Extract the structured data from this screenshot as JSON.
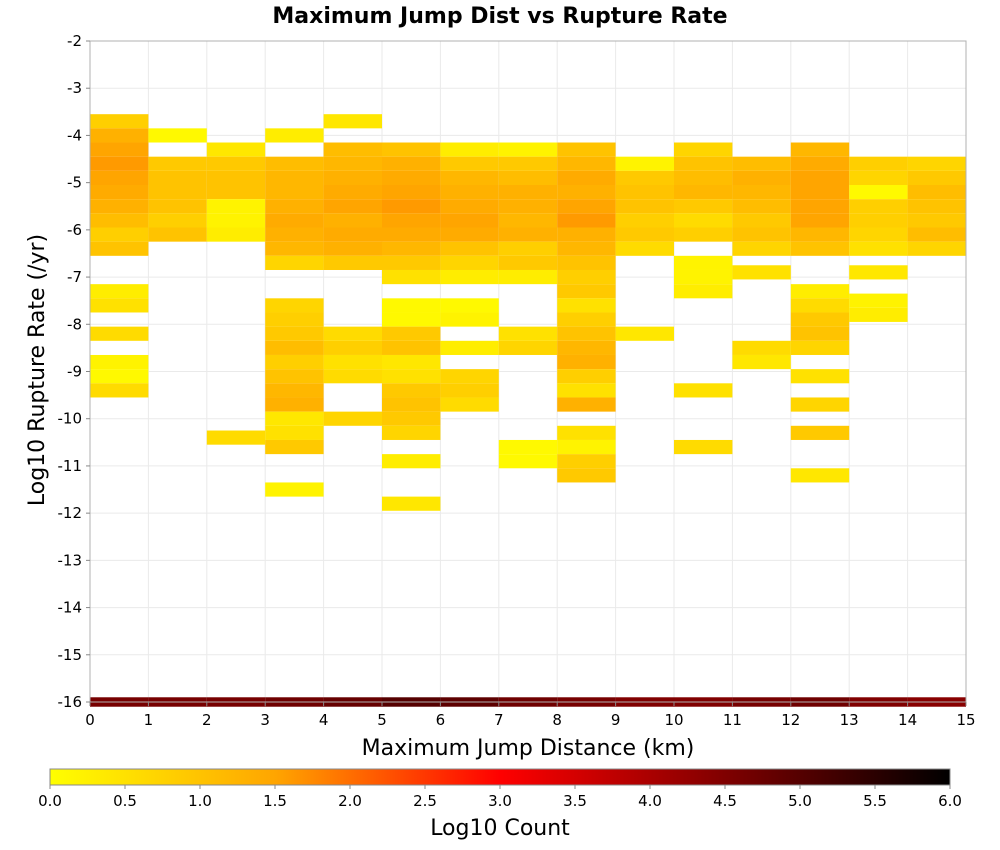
{
  "chart_data": {
    "type": "heatmap",
    "title": "Maximum Jump Dist vs Rupture Rate",
    "xlabel": "Maximum Jump Distance (km)",
    "ylabel": "Log10 Rupture Rate (/yr)",
    "xlim": [
      0,
      15
    ],
    "ylim": [
      -16,
      -2
    ],
    "x_ticks": [
      "0",
      "1",
      "2",
      "3",
      "4",
      "5",
      "6",
      "7",
      "8",
      "9",
      "10",
      "11",
      "12",
      "13",
      "14",
      "15"
    ],
    "y_ticks": [
      "-2",
      "-3",
      "-4",
      "-5",
      "-6",
      "-7",
      "-8",
      "-9",
      "-10",
      "-11",
      "-12",
      "-13",
      "-14",
      "-15",
      "-16"
    ],
    "grid": true,
    "x_bin_width": 1,
    "y_bin_width": 0.3,
    "colorbar": {
      "label": "Log10 Count",
      "range": [
        0,
        6
      ],
      "ticks": [
        "0.0",
        "0.5",
        "1.0",
        "1.5",
        "2.0",
        "2.5",
        "3.0",
        "3.5",
        "4.0",
        "4.5",
        "5.0",
        "5.5",
        "6.0"
      ],
      "colors": [
        "#ffff00",
        "#ffa500",
        "#ff0000",
        "#000000"
      ]
    },
    "columns": [
      {
        "x": [
          0,
          1
        ],
        "cells": [
          [
            -3.7,
            0.8
          ],
          [
            -4.0,
            1.3
          ],
          [
            -4.3,
            1.5
          ],
          [
            -4.6,
            1.6
          ],
          [
            -4.9,
            1.5
          ],
          [
            -5.2,
            1.4
          ],
          [
            -5.5,
            1.3
          ],
          [
            -5.8,
            1.1
          ],
          [
            -6.1,
            0.8
          ],
          [
            -6.4,
            1.0
          ],
          [
            -7.3,
            0.3
          ],
          [
            -7.6,
            0.5
          ],
          [
            -8.2,
            0.6
          ],
          [
            -8.8,
            0.2
          ],
          [
            -9.1,
            0.1
          ],
          [
            -9.4,
            0.6
          ]
        ]
      },
      {
        "x": [
          1,
          2
        ],
        "cells": [
          [
            -4.0,
            0.1
          ],
          [
            -4.6,
            0.9
          ],
          [
            -4.9,
            1.0
          ],
          [
            -5.2,
            1.0
          ],
          [
            -5.5,
            1.0
          ],
          [
            -5.8,
            0.8
          ],
          [
            -6.1,
            1.0
          ]
        ]
      },
      {
        "x": [
          2,
          3
        ],
        "cells": [
          [
            -4.3,
            0.4
          ],
          [
            -4.6,
            0.9
          ],
          [
            -4.9,
            1.0
          ],
          [
            -5.2,
            1.0
          ],
          [
            -5.5,
            0.2
          ],
          [
            -5.8,
            0.2
          ],
          [
            -6.1,
            0.3
          ],
          [
            -10.4,
            0.6
          ]
        ]
      },
      {
        "x": [
          3,
          4
        ],
        "cells": [
          [
            -4.0,
            0.3
          ],
          [
            -4.6,
            1.1
          ],
          [
            -4.9,
            1.2
          ],
          [
            -5.2,
            1.2
          ],
          [
            -5.5,
            1.3
          ],
          [
            -5.8,
            1.4
          ],
          [
            -6.1,
            1.3
          ],
          [
            -6.4,
            1.2
          ],
          [
            -6.7,
            0.7
          ],
          [
            -7.6,
            0.7
          ],
          [
            -7.9,
            0.8
          ],
          [
            -8.2,
            0.9
          ],
          [
            -8.5,
            1.1
          ],
          [
            -8.8,
            0.8
          ],
          [
            -9.1,
            1.0
          ],
          [
            -9.4,
            1.2
          ],
          [
            -9.7,
            1.3
          ],
          [
            -10.0,
            0.4
          ],
          [
            -10.3,
            0.5
          ],
          [
            -10.6,
            0.9
          ],
          [
            -11.5,
            0.2
          ]
        ]
      },
      {
        "x": [
          4,
          5
        ],
        "cells": [
          [
            -3.7,
            0.4
          ],
          [
            -4.3,
            1.1
          ],
          [
            -4.6,
            1.2
          ],
          [
            -4.9,
            1.3
          ],
          [
            -5.2,
            1.4
          ],
          [
            -5.5,
            1.5
          ],
          [
            -5.8,
            1.3
          ],
          [
            -6.1,
            1.4
          ],
          [
            -6.4,
            1.3
          ],
          [
            -6.7,
            0.9
          ],
          [
            -8.2,
            0.6
          ],
          [
            -8.5,
            0.8
          ],
          [
            -8.8,
            0.5
          ],
          [
            -9.1,
            0.6
          ],
          [
            -10.0,
            0.7
          ]
        ]
      },
      {
        "x": [
          5,
          6
        ],
        "cells": [
          [
            -4.3,
            1.0
          ],
          [
            -4.6,
            1.3
          ],
          [
            -4.9,
            1.4
          ],
          [
            -5.2,
            1.5
          ],
          [
            -5.5,
            1.6
          ],
          [
            -5.8,
            1.5
          ],
          [
            -6.1,
            1.4
          ],
          [
            -6.4,
            1.2
          ],
          [
            -6.7,
            0.9
          ],
          [
            -7.0,
            0.5
          ],
          [
            -7.6,
            0.1
          ],
          [
            -7.9,
            0.1
          ],
          [
            -8.2,
            0.9
          ],
          [
            -8.5,
            1.0
          ],
          [
            -8.8,
            0.4
          ],
          [
            -9.1,
            0.5
          ],
          [
            -9.4,
            0.9
          ],
          [
            -9.7,
            1.0
          ],
          [
            -10.0,
            0.9
          ],
          [
            -10.3,
            0.7
          ],
          [
            -10.9,
            0.3
          ],
          [
            -11.8,
            0.4
          ]
        ]
      },
      {
        "x": [
          6,
          7
        ],
        "cells": [
          [
            -4.3,
            0.3
          ],
          [
            -4.6,
            0.9
          ],
          [
            -4.9,
            1.2
          ],
          [
            -5.2,
            1.3
          ],
          [
            -5.5,
            1.4
          ],
          [
            -5.8,
            1.5
          ],
          [
            -6.1,
            1.4
          ],
          [
            -6.4,
            1.0
          ],
          [
            -6.7,
            0.7
          ],
          [
            -7.0,
            0.3
          ],
          [
            -7.6,
            0.1
          ],
          [
            -7.9,
            0.2
          ],
          [
            -8.5,
            0.3
          ],
          [
            -9.1,
            0.7
          ],
          [
            -9.4,
            0.8
          ],
          [
            -9.7,
            0.6
          ]
        ]
      },
      {
        "x": [
          7,
          8
        ],
        "cells": [
          [
            -4.3,
            0.2
          ],
          [
            -4.6,
            0.9
          ],
          [
            -4.9,
            1.1
          ],
          [
            -5.2,
            1.3
          ],
          [
            -5.5,
            1.3
          ],
          [
            -5.8,
            1.2
          ],
          [
            -6.1,
            1.3
          ],
          [
            -6.4,
            0.8
          ],
          [
            -6.7,
            0.9
          ],
          [
            -7.0,
            0.3
          ],
          [
            -8.2,
            0.5
          ],
          [
            -8.5,
            0.7
          ],
          [
            -10.6,
            0.1
          ],
          [
            -10.9,
            0.1
          ]
        ]
      },
      {
        "x": [
          8,
          9
        ],
        "cells": [
          [
            -4.3,
            1.0
          ],
          [
            -4.6,
            1.2
          ],
          [
            -4.9,
            1.4
          ],
          [
            -5.2,
            1.3
          ],
          [
            -5.5,
            1.5
          ],
          [
            -5.8,
            1.6
          ],
          [
            -6.1,
            1.3
          ],
          [
            -6.4,
            1.2
          ],
          [
            -6.7,
            1.0
          ],
          [
            -7.0,
            0.8
          ],
          [
            -7.3,
            0.9
          ],
          [
            -7.6,
            0.5
          ],
          [
            -7.9,
            0.8
          ],
          [
            -8.2,
            1.0
          ],
          [
            -8.5,
            1.2
          ],
          [
            -8.8,
            1.3
          ],
          [
            -9.1,
            0.8
          ],
          [
            -9.4,
            0.5
          ],
          [
            -9.7,
            1.3
          ],
          [
            -10.3,
            0.5
          ],
          [
            -10.6,
            0.2
          ],
          [
            -10.9,
            0.8
          ],
          [
            -11.2,
            0.9
          ]
        ]
      },
      {
        "x": [
          9,
          10
        ],
        "cells": [
          [
            -4.6,
            0.2
          ],
          [
            -4.9,
            0.9
          ],
          [
            -5.2,
            1.0
          ],
          [
            -5.5,
            1.0
          ],
          [
            -5.8,
            0.8
          ],
          [
            -6.1,
            0.9
          ],
          [
            -6.4,
            0.6
          ],
          [
            -8.2,
            0.4
          ]
        ]
      },
      {
        "x": [
          10,
          11
        ],
        "cells": [
          [
            -4.3,
            0.7
          ],
          [
            -4.6,
            1.0
          ],
          [
            -4.9,
            1.1
          ],
          [
            -5.2,
            1.2
          ],
          [
            -5.5,
            0.9
          ],
          [
            -5.8,
            0.6
          ],
          [
            -6.1,
            0.8
          ],
          [
            -6.7,
            0.2
          ],
          [
            -7.0,
            0.2
          ],
          [
            -7.3,
            0.3
          ],
          [
            -9.4,
            0.5
          ],
          [
            -10.6,
            0.6
          ]
        ]
      },
      {
        "x": [
          11,
          12
        ],
        "cells": [
          [
            -4.6,
            1.1
          ],
          [
            -4.9,
            1.3
          ],
          [
            -5.2,
            1.2
          ],
          [
            -5.5,
            1.1
          ],
          [
            -5.8,
            0.9
          ],
          [
            -6.1,
            1.0
          ],
          [
            -6.4,
            0.7
          ],
          [
            -6.9,
            0.5
          ],
          [
            -8.5,
            0.6
          ],
          [
            -8.8,
            0.4
          ]
        ]
      },
      {
        "x": [
          12,
          13
        ],
        "cells": [
          [
            -4.3,
            1.2
          ],
          [
            -4.6,
            1.4
          ],
          [
            -4.9,
            1.5
          ],
          [
            -5.2,
            1.5
          ],
          [
            -5.5,
            1.5
          ],
          [
            -5.8,
            1.5
          ],
          [
            -6.1,
            1.2
          ],
          [
            -6.4,
            1.0
          ],
          [
            -7.3,
            0.3
          ],
          [
            -7.6,
            0.6
          ],
          [
            -7.9,
            0.9
          ],
          [
            -8.2,
            1.0
          ],
          [
            -8.5,
            0.7
          ],
          [
            -9.1,
            0.5
          ],
          [
            -9.7,
            0.7
          ],
          [
            -10.3,
            0.9
          ],
          [
            -11.2,
            0.4
          ]
        ]
      },
      {
        "x": [
          13,
          14
        ],
        "cells": [
          [
            -4.6,
            0.8
          ],
          [
            -4.9,
            0.7
          ],
          [
            -5.2,
            0.1
          ],
          [
            -5.5,
            0.8
          ],
          [
            -5.8,
            0.8
          ],
          [
            -6.1,
            0.7
          ],
          [
            -6.4,
            0.5
          ],
          [
            -6.9,
            0.4
          ],
          [
            -7.5,
            0.2
          ],
          [
            -7.8,
            0.3
          ]
        ]
      },
      {
        "x": [
          14,
          15
        ],
        "cells": [
          [
            -4.6,
            0.7
          ],
          [
            -4.9,
            0.9
          ],
          [
            -5.2,
            1.1
          ],
          [
            -5.5,
            1.0
          ],
          [
            -5.8,
            0.9
          ],
          [
            -6.1,
            1.1
          ],
          [
            -6.4,
            0.7
          ]
        ]
      }
    ],
    "bottom_band": {
      "y": -16,
      "height": 0.2,
      "values": [
        4.6,
        4.6,
        4.6,
        4.7,
        4.8,
        5.0,
        4.9,
        4.7,
        4.6,
        4.5,
        4.5,
        4.6,
        4.7,
        4.5,
        4.4
      ]
    }
  }
}
